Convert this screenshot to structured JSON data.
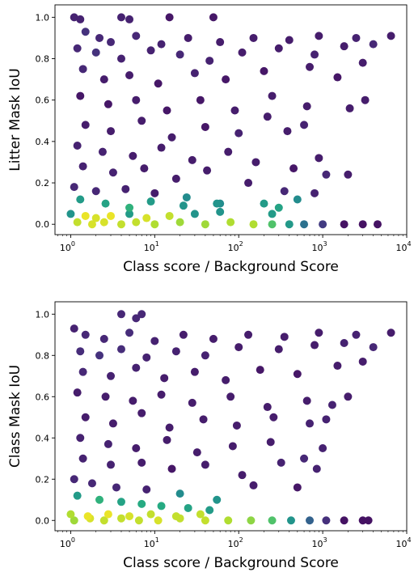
{
  "chart_data": [
    {
      "type": "scatter",
      "title": "",
      "xlabel": "Class score / Background Score",
      "ylabel": "Litter Mask IoU",
      "xscale": "log",
      "xlim": [
        0.65,
        10000
      ],
      "ylim": [
        -0.05,
        1.06
      ],
      "xticks": [
        {
          "base": "10",
          "exp": "0"
        },
        {
          "base": "10",
          "exp": "1"
        },
        {
          "base": "10",
          "exp": "2"
        },
        {
          "base": "10",
          "exp": "3"
        },
        {
          "base": "10",
          "exp": "4"
        }
      ],
      "yticks": [
        "0.0",
        "0.2",
        "0.4",
        "0.6",
        "0.8",
        "1.0"
      ],
      "colormap": "viridis",
      "color_meaning": "point density (yellow = densest)",
      "grid": false,
      "legend": "none",
      "points": [
        {
          "x": 1.1,
          "y": 1.0
        },
        {
          "x": 1.3,
          "y": 0.99
        },
        {
          "x": 4,
          "y": 1.0
        },
        {
          "x": 5,
          "y": 0.99
        },
        {
          "x": 15,
          "y": 1.0
        },
        {
          "x": 50,
          "y": 1.0
        },
        {
          "x": 1.5,
          "y": 0.93
        },
        {
          "x": 2.2,
          "y": 0.9
        },
        {
          "x": 3,
          "y": 0.88
        },
        {
          "x": 6,
          "y": 0.91
        },
        {
          "x": 12,
          "y": 0.87
        },
        {
          "x": 25,
          "y": 0.9
        },
        {
          "x": 60,
          "y": 0.88
        },
        {
          "x": 150,
          "y": 0.9
        },
        {
          "x": 400,
          "y": 0.89
        },
        {
          "x": 900,
          "y": 0.91
        },
        {
          "x": 2500,
          "y": 0.9
        },
        {
          "x": 6500,
          "y": 0.91
        },
        {
          "x": 1.2,
          "y": 0.85
        },
        {
          "x": 2,
          "y": 0.83
        },
        {
          "x": 4,
          "y": 0.8
        },
        {
          "x": 9,
          "y": 0.84
        },
        {
          "x": 20,
          "y": 0.82
        },
        {
          "x": 45,
          "y": 0.79
        },
        {
          "x": 110,
          "y": 0.83
        },
        {
          "x": 300,
          "y": 0.85
        },
        {
          "x": 800,
          "y": 0.82
        },
        {
          "x": 1800,
          "y": 0.86
        },
        {
          "x": 4000,
          "y": 0.87
        },
        {
          "x": 1.4,
          "y": 0.75
        },
        {
          "x": 2.5,
          "y": 0.7
        },
        {
          "x": 5,
          "y": 0.72
        },
        {
          "x": 11,
          "y": 0.68
        },
        {
          "x": 30,
          "y": 0.73
        },
        {
          "x": 70,
          "y": 0.7
        },
        {
          "x": 200,
          "y": 0.74
        },
        {
          "x": 700,
          "y": 0.76
        },
        {
          "x": 1500,
          "y": 0.71
        },
        {
          "x": 3000,
          "y": 0.78
        },
        {
          "x": 1.3,
          "y": 0.62
        },
        {
          "x": 2.8,
          "y": 0.58
        },
        {
          "x": 6,
          "y": 0.6
        },
        {
          "x": 14,
          "y": 0.55
        },
        {
          "x": 35,
          "y": 0.6
        },
        {
          "x": 90,
          "y": 0.55
        },
        {
          "x": 250,
          "y": 0.62
        },
        {
          "x": 650,
          "y": 0.57
        },
        {
          "x": 2100,
          "y": 0.56
        },
        {
          "x": 3200,
          "y": 0.6
        },
        {
          "x": 1.5,
          "y": 0.48
        },
        {
          "x": 3,
          "y": 0.45
        },
        {
          "x": 7,
          "y": 0.5
        },
        {
          "x": 16,
          "y": 0.42
        },
        {
          "x": 40,
          "y": 0.47
        },
        {
          "x": 100,
          "y": 0.44
        },
        {
          "x": 220,
          "y": 0.52
        },
        {
          "x": 380,
          "y": 0.45
        },
        {
          "x": 600,
          "y": 0.48
        },
        {
          "x": 1.2,
          "y": 0.38
        },
        {
          "x": 2.4,
          "y": 0.35
        },
        {
          "x": 5.5,
          "y": 0.33
        },
        {
          "x": 12,
          "y": 0.37
        },
        {
          "x": 28,
          "y": 0.31
        },
        {
          "x": 75,
          "y": 0.35
        },
        {
          "x": 160,
          "y": 0.3
        },
        {
          "x": 450,
          "y": 0.27
        },
        {
          "x": 900,
          "y": 0.32
        },
        {
          "x": 1.4,
          "y": 0.28
        },
        {
          "x": 3.2,
          "y": 0.25
        },
        {
          "x": 7.5,
          "y": 0.27
        },
        {
          "x": 18,
          "y": 0.22
        },
        {
          "x": 42,
          "y": 0.26
        },
        {
          "x": 130,
          "y": 0.2
        },
        {
          "x": 350,
          "y": 0.16
        },
        {
          "x": 1100,
          "y": 0.24
        },
        {
          "x": 2000,
          "y": 0.24
        },
        {
          "x": 1.1,
          "y": 0.18
        },
        {
          "x": 2,
          "y": 0.16
        },
        {
          "x": 4.5,
          "y": 0.17
        },
        {
          "x": 10,
          "y": 0.15
        },
        {
          "x": 24,
          "y": 0.13
        },
        {
          "x": 60,
          "y": 0.1
        },
        {
          "x": 200,
          "y": 0.1
        },
        {
          "x": 500,
          "y": 0.12
        },
        {
          "x": 800,
          "y": 0.15
        },
        {
          "x": 1.3,
          "y": 0.12
        },
        {
          "x": 2.6,
          "y": 0.1
        },
        {
          "x": 5,
          "y": 0.08
        },
        {
          "x": 9,
          "y": 0.11
        },
        {
          "x": 22,
          "y": 0.09
        },
        {
          "x": 55,
          "y": 0.1
        },
        {
          "x": 300,
          "y": 0.08
        },
        {
          "x": 250,
          "y": 0.05
        },
        {
          "x": 1,
          "y": 0.05
        },
        {
          "x": 1.5,
          "y": 0.04
        },
        {
          "x": 2,
          "y": 0.03
        },
        {
          "x": 3,
          "y": 0.04
        },
        {
          "x": 5,
          "y": 0.05
        },
        {
          "x": 8,
          "y": 0.03
        },
        {
          "x": 15,
          "y": 0.04
        },
        {
          "x": 30,
          "y": 0.05
        },
        {
          "x": 60,
          "y": 0.06
        },
        {
          "x": 1.2,
          "y": 0.01
        },
        {
          "x": 1.8,
          "y": 0.0
        },
        {
          "x": 2.5,
          "y": 0.01
        },
        {
          "x": 4,
          "y": 0.0
        },
        {
          "x": 6,
          "y": 0.01
        },
        {
          "x": 10,
          "y": 0.0
        },
        {
          "x": 20,
          "y": 0.01
        },
        {
          "x": 40,
          "y": 0.0
        },
        {
          "x": 80,
          "y": 0.01
        },
        {
          "x": 150,
          "y": 0.0
        },
        {
          "x": 250,
          "y": 0.0
        },
        {
          "x": 400,
          "y": 0.0
        },
        {
          "x": 600,
          "y": 0.0
        },
        {
          "x": 1000,
          "y": 0.0
        },
        {
          "x": 1800,
          "y": 0.0
        },
        {
          "x": 3000,
          "y": 0.0
        },
        {
          "x": 4500,
          "y": 0.0
        }
      ]
    },
    {
      "type": "scatter",
      "title": "",
      "xlabel": "Class score / Background Score",
      "ylabel": "Class Mask IoU",
      "xscale": "log",
      "xlim": [
        0.65,
        10000
      ],
      "ylim": [
        -0.05,
        1.06
      ],
      "xticks": [
        {
          "base": "10",
          "exp": "0"
        },
        {
          "base": "10",
          "exp": "1"
        },
        {
          "base": "10",
          "exp": "2"
        },
        {
          "base": "10",
          "exp": "3"
        },
        {
          "base": "10",
          "exp": "4"
        }
      ],
      "yticks": [
        "0.0",
        "0.2",
        "0.4",
        "0.6",
        "0.8",
        "1.0"
      ],
      "colormap": "viridis",
      "color_meaning": "point density (yellow = densest)",
      "grid": false,
      "legend": "none",
      "points": [
        {
          "x": 4,
          "y": 1.0
        },
        {
          "x": 7,
          "y": 1.0
        },
        {
          "x": 6,
          "y": 0.98
        },
        {
          "x": 1.1,
          "y": 0.93
        },
        {
          "x": 1.5,
          "y": 0.9
        },
        {
          "x": 2.5,
          "y": 0.88
        },
        {
          "x": 5,
          "y": 0.91
        },
        {
          "x": 10,
          "y": 0.87
        },
        {
          "x": 22,
          "y": 0.9
        },
        {
          "x": 50,
          "y": 0.88
        },
        {
          "x": 130,
          "y": 0.9
        },
        {
          "x": 350,
          "y": 0.89
        },
        {
          "x": 900,
          "y": 0.91
        },
        {
          "x": 2500,
          "y": 0.9
        },
        {
          "x": 6500,
          "y": 0.91
        },
        {
          "x": 1.3,
          "y": 0.82
        },
        {
          "x": 2.2,
          "y": 0.8
        },
        {
          "x": 4,
          "y": 0.83
        },
        {
          "x": 8,
          "y": 0.79
        },
        {
          "x": 18,
          "y": 0.82
        },
        {
          "x": 40,
          "y": 0.8
        },
        {
          "x": 100,
          "y": 0.84
        },
        {
          "x": 300,
          "y": 0.83
        },
        {
          "x": 800,
          "y": 0.85
        },
        {
          "x": 1800,
          "y": 0.86
        },
        {
          "x": 4000,
          "y": 0.84
        },
        {
          "x": 1.4,
          "y": 0.72
        },
        {
          "x": 3,
          "y": 0.7
        },
        {
          "x": 6,
          "y": 0.74
        },
        {
          "x": 13,
          "y": 0.69
        },
        {
          "x": 30,
          "y": 0.72
        },
        {
          "x": 70,
          "y": 0.68
        },
        {
          "x": 180,
          "y": 0.73
        },
        {
          "x": 500,
          "y": 0.71
        },
        {
          "x": 1500,
          "y": 0.75
        },
        {
          "x": 3000,
          "y": 0.77
        },
        {
          "x": 1.2,
          "y": 0.62
        },
        {
          "x": 2.6,
          "y": 0.6
        },
        {
          "x": 5.5,
          "y": 0.58
        },
        {
          "x": 12,
          "y": 0.61
        },
        {
          "x": 28,
          "y": 0.57
        },
        {
          "x": 80,
          "y": 0.6
        },
        {
          "x": 220,
          "y": 0.55
        },
        {
          "x": 650,
          "y": 0.58
        },
        {
          "x": 1300,
          "y": 0.56
        },
        {
          "x": 2000,
          "y": 0.6
        },
        {
          "x": 1.5,
          "y": 0.5
        },
        {
          "x": 3.2,
          "y": 0.47
        },
        {
          "x": 7,
          "y": 0.52
        },
        {
          "x": 15,
          "y": 0.45
        },
        {
          "x": 38,
          "y": 0.49
        },
        {
          "x": 95,
          "y": 0.46
        },
        {
          "x": 260,
          "y": 0.5
        },
        {
          "x": 700,
          "y": 0.47
        },
        {
          "x": 1100,
          "y": 0.49
        },
        {
          "x": 1.3,
          "y": 0.4
        },
        {
          "x": 2.8,
          "y": 0.37
        },
        {
          "x": 6,
          "y": 0.35
        },
        {
          "x": 14,
          "y": 0.39
        },
        {
          "x": 32,
          "y": 0.33
        },
        {
          "x": 85,
          "y": 0.36
        },
        {
          "x": 240,
          "y": 0.38
        },
        {
          "x": 600,
          "y": 0.3
        },
        {
          "x": 1000,
          "y": 0.35
        },
        {
          "x": 1.4,
          "y": 0.3
        },
        {
          "x": 3,
          "y": 0.27
        },
        {
          "x": 7,
          "y": 0.28
        },
        {
          "x": 16,
          "y": 0.25
        },
        {
          "x": 40,
          "y": 0.27
        },
        {
          "x": 110,
          "y": 0.22
        },
        {
          "x": 320,
          "y": 0.28
        },
        {
          "x": 850,
          "y": 0.25
        },
        {
          "x": 1.1,
          "y": 0.2
        },
        {
          "x": 1.8,
          "y": 0.18
        },
        {
          "x": 3.5,
          "y": 0.16
        },
        {
          "x": 8,
          "y": 0.15
        },
        {
          "x": 20,
          "y": 0.13
        },
        {
          "x": 55,
          "y": 0.1
        },
        {
          "x": 150,
          "y": 0.17
        },
        {
          "x": 500,
          "y": 0.16
        },
        {
          "x": 1.2,
          "y": 0.12
        },
        {
          "x": 2.2,
          "y": 0.1
        },
        {
          "x": 4,
          "y": 0.09
        },
        {
          "x": 7,
          "y": 0.08
        },
        {
          "x": 12,
          "y": 0.07
        },
        {
          "x": 25,
          "y": 0.06
        },
        {
          "x": 45,
          "y": 0.05
        },
        {
          "x": 1,
          "y": 0.03
        },
        {
          "x": 1.6,
          "y": 0.02
        },
        {
          "x": 2.8,
          "y": 0.03
        },
        {
          "x": 5,
          "y": 0.02
        },
        {
          "x": 9,
          "y": 0.03
        },
        {
          "x": 18,
          "y": 0.02
        },
        {
          "x": 35,
          "y": 0.03
        },
        {
          "x": 1.1,
          "y": 0.0
        },
        {
          "x": 1.7,
          "y": 0.01
        },
        {
          "x": 2.5,
          "y": 0.0
        },
        {
          "x": 4,
          "y": 0.01
        },
        {
          "x": 6.5,
          "y": 0.0
        },
        {
          "x": 11,
          "y": 0.0
        },
        {
          "x": 20,
          "y": 0.01
        },
        {
          "x": 40,
          "y": 0.0
        },
        {
          "x": 75,
          "y": 0.0
        },
        {
          "x": 140,
          "y": 0.0
        },
        {
          "x": 250,
          "y": 0.0
        },
        {
          "x": 420,
          "y": 0.0
        },
        {
          "x": 700,
          "y": 0.0
        },
        {
          "x": 1100,
          "y": 0.0
        },
        {
          "x": 1800,
          "y": 0.0
        },
        {
          "x": 3000,
          "y": 0.0
        },
        {
          "x": 3500,
          "y": 0.0
        }
      ]
    }
  ]
}
